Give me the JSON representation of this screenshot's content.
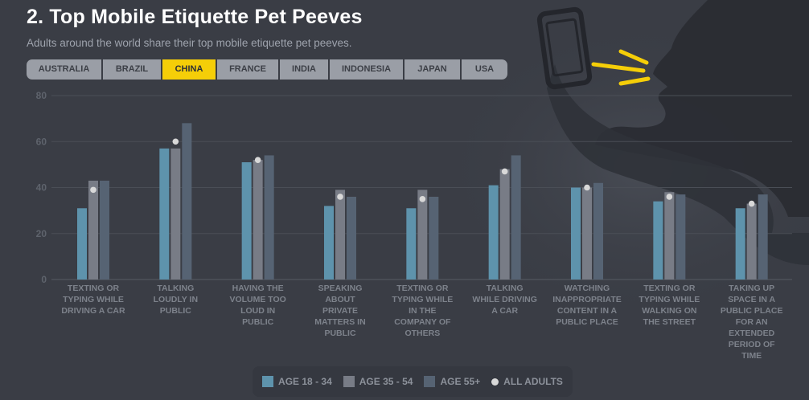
{
  "title": "2. Top Mobile Etiquette Pet Peeves",
  "subtitle": "Adults around the world share their top mobile etiquette pet peeves.",
  "tabs": [
    "AUSTRALIA",
    "BRAZIL",
    "CHINA",
    "FRANCE",
    "INDIA",
    "INDONESIA",
    "JAPAN",
    "USA"
  ],
  "active_tab": "CHINA",
  "colors": {
    "age_18_34": "#5e93ac",
    "age_35_54": "#787c86",
    "age_55_plus": "#566373",
    "all_adults": "#d8d8d8",
    "accent": "#f5ce08"
  },
  "legend": {
    "age_18_34": "AGE 18 - 34",
    "age_35_54": "AGE 35 - 54",
    "age_55_plus": "AGE 55+",
    "all_adults": "ALL ADULTS"
  },
  "chart_data": {
    "type": "bar",
    "title": "2. Top Mobile Etiquette Pet Peeves",
    "ylim": [
      0,
      80
    ],
    "yticks": [
      0,
      20,
      40,
      60,
      80
    ],
    "grid": true,
    "categories": [
      [
        "TEXTING OR",
        "TYPING WHILE",
        "DRIVING A CAR"
      ],
      [
        "TALKING",
        "LOUDLY IN",
        "PUBLIC"
      ],
      [
        "HAVING THE",
        "VOLUME TOO",
        "LOUD IN",
        "PUBLIC"
      ],
      [
        "SPEAKING",
        "ABOUT",
        "PRIVATE",
        "MATTERS IN",
        "PUBLIC"
      ],
      [
        "TEXTING OR",
        "TYPING WHILE",
        "IN THE",
        "COMPANY OF",
        "OTHERS"
      ],
      [
        "TALKING",
        "WHILE DRIVING",
        "A CAR"
      ],
      [
        "WATCHING",
        "INAPPROPRIATE",
        "CONTENT IN A",
        "PUBLIC PLACE"
      ],
      [
        "TEXTING OR",
        "TYPING WHILE",
        "WALKING ON",
        "THE STREET"
      ],
      [
        "TAKING UP",
        "SPACE IN A",
        "PUBLIC PLACE",
        "FOR AN",
        "EXTENDED",
        "PERIOD OF",
        "TIME"
      ]
    ],
    "series": [
      {
        "name": "AGE 18 - 34",
        "values": [
          31,
          57,
          51,
          32,
          31,
          41,
          40,
          34,
          31
        ]
      },
      {
        "name": "AGE 35 - 54",
        "values": [
          43,
          57,
          52,
          39,
          39,
          48,
          40,
          38,
          33
        ]
      },
      {
        "name": "AGE 55+",
        "values": [
          43,
          68,
          54,
          36,
          36,
          54,
          42,
          37,
          37
        ]
      }
    ],
    "all_adults": [
      39,
      60,
      52,
      36,
      35,
      47,
      40,
      36,
      33
    ],
    "legend": [
      "AGE 18 - 34",
      "AGE 35 - 54",
      "AGE 55+",
      "ALL ADULTS"
    ],
    "legend_position": "bottom-center"
  }
}
